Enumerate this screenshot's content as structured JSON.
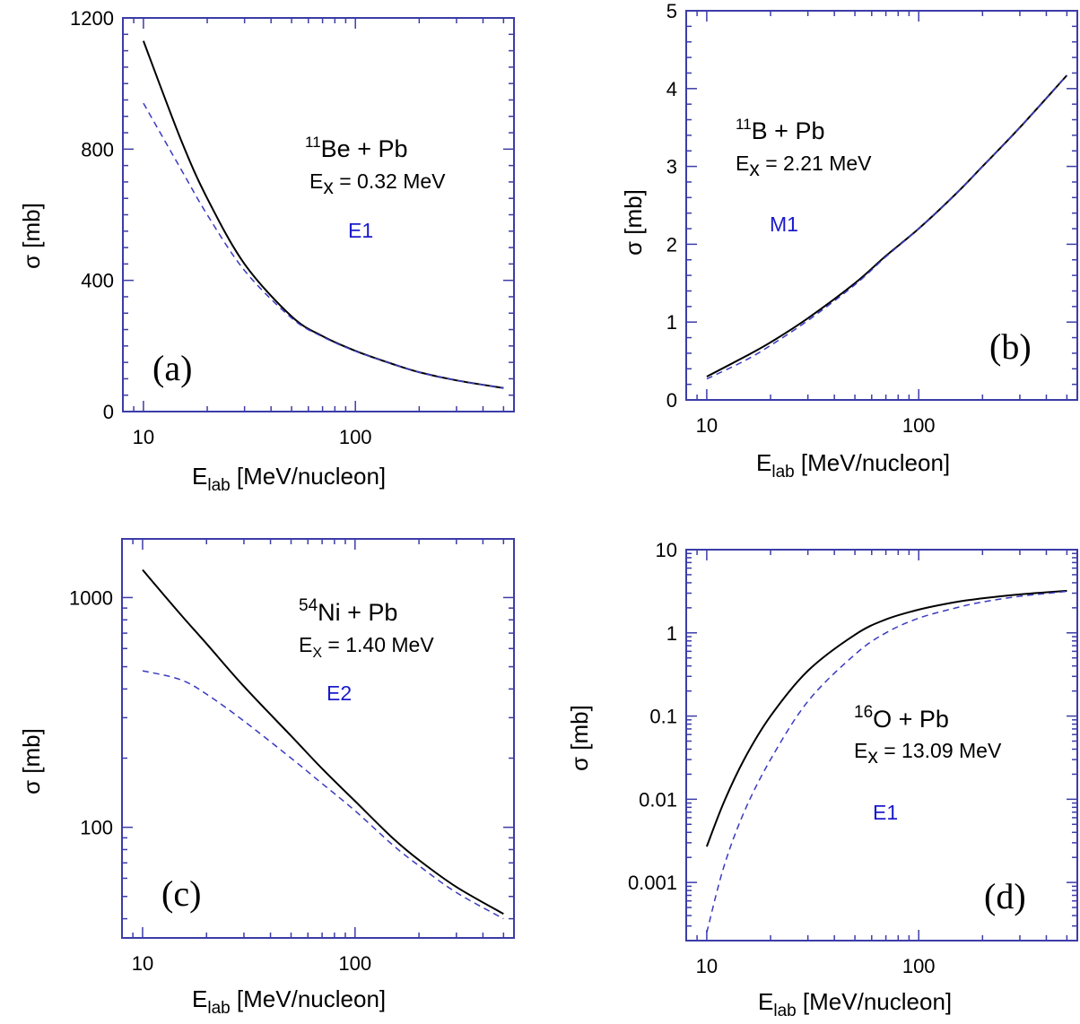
{
  "chart_data": [
    {
      "type": "line",
      "panel_label": "(a)",
      "reaction": {
        "mass": "11",
        "nucleus": "Be",
        "rest": " + Pb"
      },
      "excitation": {
        "symbol": "E",
        "sub": "x",
        "value": " = 0.32 MeV"
      },
      "multipolarity": "E1",
      "xlabel": {
        "main": "E",
        "sub": "lab",
        "rest": " [MeV/nucleon]"
      },
      "ylabel": "σ  [mb]",
      "x_scale": "log",
      "y_scale": "linear",
      "xlim": [
        8,
        560
      ],
      "ylim": [
        0,
        1200
      ],
      "x_ticks": [
        {
          "v": 10,
          "label": "10"
        },
        {
          "v": 100,
          "label": "100"
        }
      ],
      "y_ticks": [
        {
          "v": 0,
          "label": "0"
        },
        {
          "v": 400,
          "label": "400"
        },
        {
          "v": 800,
          "label": "800"
        },
        {
          "v": 1200,
          "label": "1200"
        }
      ],
      "series": [
        {
          "style": "solid",
          "color": "#000000",
          "x": [
            10,
            15,
            20,
            30,
            50,
            70,
            100,
            150,
            200,
            300,
            500
          ],
          "y": [
            1130,
            830,
            650,
            450,
            290,
            230,
            185,
            145,
            120,
            95,
            72
          ]
        },
        {
          "style": "dashed",
          "color": "#3a3ac0",
          "x": [
            10,
            15,
            20,
            30,
            50,
            70,
            100,
            150,
            200,
            300,
            500
          ],
          "y": [
            940,
            740,
            600,
            430,
            285,
            228,
            184,
            145,
            120,
            95,
            72
          ]
        }
      ]
    },
    {
      "type": "line",
      "panel_label": "(b)",
      "reaction": {
        "mass": "11",
        "nucleus": "B",
        "rest": " + Pb"
      },
      "excitation": {
        "symbol": "E",
        "sub": "x",
        "value": " = 2.21 MeV"
      },
      "multipolarity": "M1",
      "xlabel": {
        "main": "E",
        "sub": "lab",
        "rest": " [MeV/nucleon]"
      },
      "ylabel": "σ  [mb]",
      "x_scale": "log",
      "y_scale": "linear",
      "xlim": [
        8,
        560
      ],
      "ylim": [
        0,
        5
      ],
      "x_ticks": [
        {
          "v": 10,
          "label": "10"
        },
        {
          "v": 100,
          "label": "100"
        }
      ],
      "y_ticks": [
        {
          "v": 0,
          "label": "0"
        },
        {
          "v": 1,
          "label": "1"
        },
        {
          "v": 2,
          "label": "2"
        },
        {
          "v": 3,
          "label": "3"
        },
        {
          "v": 4,
          "label": "4"
        },
        {
          "v": 5,
          "label": "5"
        }
      ],
      "series": [
        {
          "style": "solid",
          "color": "#000000",
          "x": [
            10,
            15,
            20,
            30,
            50,
            70,
            100,
            150,
            200,
            300,
            500
          ],
          "y": [
            0.3,
            0.55,
            0.74,
            1.05,
            1.5,
            1.85,
            2.2,
            2.65,
            3.0,
            3.5,
            4.17
          ]
        },
        {
          "style": "dashed",
          "color": "#3a3ac0",
          "x": [
            10,
            15,
            20,
            30,
            50,
            70,
            100,
            150,
            200,
            300,
            500
          ],
          "y": [
            0.27,
            0.5,
            0.7,
            1.02,
            1.48,
            1.84,
            2.2,
            2.65,
            3.0,
            3.5,
            4.17
          ]
        }
      ]
    },
    {
      "type": "line",
      "panel_label": "(c)",
      "reaction": {
        "mass": "54",
        "nucleus": "Ni",
        "rest": " + Pb"
      },
      "excitation": {
        "symbol": "E",
        "sub": "X",
        "value": " = 1.40 MeV"
      },
      "multipolarity": "E2",
      "xlabel": {
        "main": "E",
        "sub": "lab",
        "rest": " [MeV/nucleon]"
      },
      "ylabel": "σ  [mb]",
      "x_scale": "log",
      "y_scale": "log",
      "xlim": [
        8,
        560
      ],
      "ylim": [
        33,
        1800
      ],
      "x_ticks": [
        {
          "v": 10,
          "label": "10"
        },
        {
          "v": 100,
          "label": "100"
        }
      ],
      "y_ticks": [
        {
          "v": 100,
          "label": "100"
        },
        {
          "v": 1000,
          "label": "1000"
        }
      ],
      "series": [
        {
          "style": "solid",
          "color": "#000000",
          "x": [
            10,
            15,
            20,
            30,
            50,
            70,
            100,
            150,
            200,
            300,
            500
          ],
          "y": [
            1320,
            850,
            630,
            410,
            250,
            180,
            130,
            90,
            72,
            55,
            42
          ]
        },
        {
          "style": "dashed",
          "color": "#3a3ac0",
          "x": [
            10,
            15,
            20,
            30,
            50,
            70,
            100,
            150,
            200,
            300,
            500
          ],
          "y": [
            480,
            440,
            380,
            290,
            200,
            155,
            118,
            84,
            68,
            52,
            40
          ]
        }
      ]
    },
    {
      "type": "line",
      "panel_label": "(d)",
      "reaction": {
        "mass": "16",
        "nucleus": "O",
        "rest": " + Pb"
      },
      "excitation": {
        "symbol": "E",
        "sub": "x",
        "value": " = 13.09 MeV"
      },
      "multipolarity": "E1",
      "xlabel": {
        "main": "E",
        "sub": "lab",
        "rest": " [MeV/nucleon]"
      },
      "ylabel": "σ  [mb]",
      "x_scale": "log",
      "y_scale": "log",
      "xlim": [
        8,
        560
      ],
      "ylim": [
        0.0002,
        10
      ],
      "x_ticks": [
        {
          "v": 10,
          "label": "10"
        },
        {
          "v": 100,
          "label": "100"
        }
      ],
      "y_ticks": [
        {
          "v": 0.001,
          "label": "0.001"
        },
        {
          "v": 0.01,
          "label": "0.01"
        },
        {
          "v": 0.1,
          "label": "0.1"
        },
        {
          "v": 1,
          "label": "1"
        },
        {
          "v": 10,
          "label": "10"
        }
      ],
      "series": [
        {
          "style": "solid",
          "color": "#000000",
          "x": [
            10,
            12,
            15,
            20,
            30,
            50,
            70,
            100,
            150,
            200,
            300,
            500
          ],
          "y": [
            0.0027,
            0.009,
            0.03,
            0.1,
            0.35,
            0.95,
            1.45,
            1.9,
            2.35,
            2.6,
            2.9,
            3.2
          ]
        },
        {
          "style": "dashed",
          "color": "#3a3ac0",
          "x": [
            10,
            12,
            15,
            20,
            30,
            50,
            70,
            100,
            150,
            200,
            300,
            500
          ],
          "y": [
            0.00025,
            0.0015,
            0.007,
            0.03,
            0.15,
            0.55,
            1.0,
            1.5,
            2.0,
            2.35,
            2.75,
            3.15
          ]
        }
      ]
    }
  ]
}
